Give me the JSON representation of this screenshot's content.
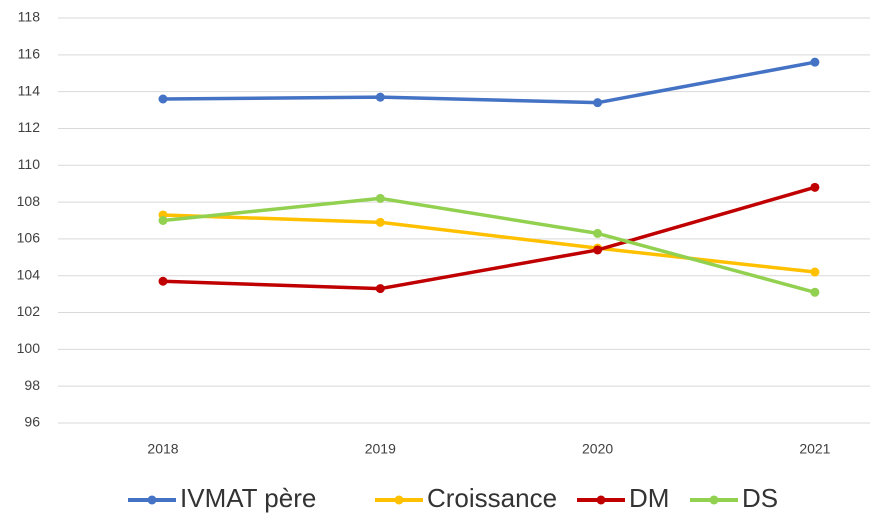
{
  "chart_data": {
    "type": "line",
    "categories": [
      "2018",
      "2019",
      "2020",
      "2021"
    ],
    "series": [
      {
        "name": "IVMAT père",
        "color": "#4472c4",
        "values": [
          113.6,
          113.7,
          113.4,
          115.6
        ]
      },
      {
        "name": "Croissance",
        "color": "#ffc000",
        "values": [
          107.3,
          106.9,
          105.5,
          104.2
        ]
      },
      {
        "name": "DM",
        "color": "#c00000",
        "values": [
          103.7,
          103.3,
          105.4,
          108.8
        ]
      },
      {
        "name": "DS",
        "color": "#92d050",
        "values": [
          107.0,
          108.2,
          106.3,
          103.1
        ]
      }
    ],
    "ylim": [
      96,
      118
    ],
    "yticks": [
      96,
      98,
      100,
      102,
      104,
      106,
      108,
      110,
      112,
      114,
      116,
      118
    ],
    "grid": true,
    "legend": "bottom"
  }
}
